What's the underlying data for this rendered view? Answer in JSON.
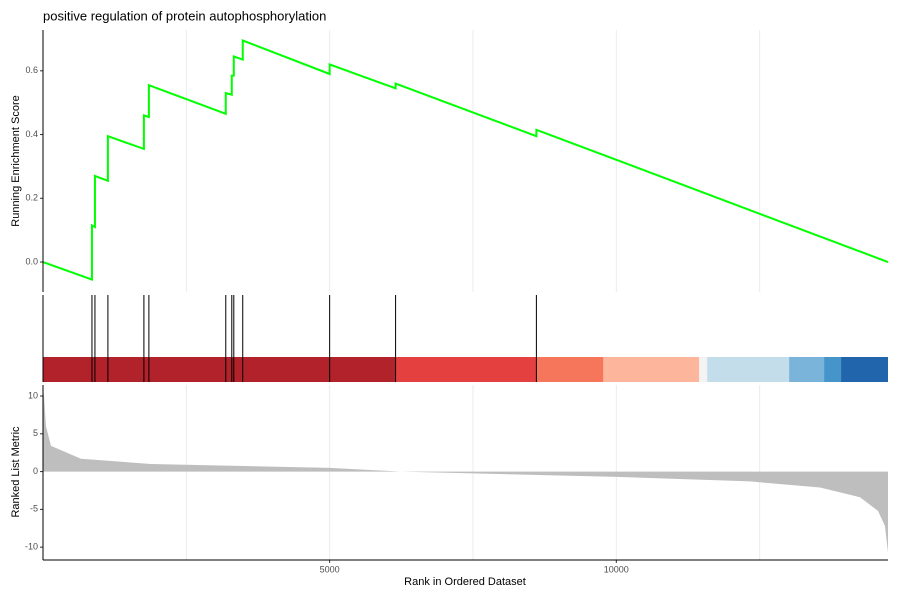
{
  "chart_data": [
    {
      "type": "line",
      "title": "positive regulation of protein autophosphorylation",
      "ylabel": "Running Enrichment Score",
      "color": "#00FF00",
      "x": [
        0,
        854,
        854,
        906,
        906,
        1132,
        1132,
        1760,
        1760,
        1847,
        1847,
        3188,
        3188,
        3293,
        3293,
        3328,
        3328,
        3484,
        3484,
        5000,
        5000,
        6150,
        6150,
        8606,
        8606,
        14739
      ],
      "y": [
        0,
        -0.055,
        0.115,
        0.11,
        0.27,
        0.255,
        0.395,
        0.355,
        0.46,
        0.455,
        0.555,
        0.465,
        0.53,
        0.525,
        0.585,
        0.585,
        0.645,
        0.635,
        0.695,
        0.59,
        0.62,
        0.545,
        0.56,
        0.395,
        0.415,
        0
      ],
      "xlim": [
        0,
        14739
      ],
      "ylim": [
        -0.094,
        0.728
      ],
      "yticks": [
        {
          "value": 0,
          "label": "0.0"
        },
        0.2,
        0.4,
        0.6
      ],
      "xgrid": [
        2500,
        5000,
        7500,
        10000,
        12500
      ]
    },
    {
      "type": "rug",
      "color": "#000000",
      "x": [
        854,
        906,
        1132,
        1760,
        1847,
        3188,
        3293,
        3328,
        3484,
        5000,
        6150,
        8606
      ],
      "xlim": [
        0,
        14739
      ],
      "band_bins": [
        0,
        6150,
        8606,
        9774,
        11446,
        11585,
        13014,
        13624,
        13920,
        14739
      ],
      "band_colors": [
        "#B2222A",
        "#E4403F",
        "#F6765C",
        "#FDB59B",
        "#F3F3F3",
        "#C4DDEB",
        "#7AB4DA",
        "#4594CA",
        "#2166AC"
      ]
    },
    {
      "type": "area",
      "xlabel": "Rank in Ordered Dataset",
      "ylabel": "Ranked List Metric",
      "color": "#BEBEBE",
      "x": [
        0,
        17,
        52,
        139,
        662,
        1882,
        5000,
        6237,
        10000,
        12334,
        13554,
        14251,
        14564,
        14686,
        14739
      ],
      "values": [
        11,
        10,
        6,
        3.4,
        1.7,
        1,
        0.5,
        0,
        -0.7,
        -1.3,
        -2.1,
        -3.4,
        -5.2,
        -7.2,
        -10.7
      ],
      "xlim": [
        0,
        14739
      ],
      "ylim": [
        -11.7,
        11.46
      ],
      "yticks": [
        10,
        5,
        0,
        -5,
        -10
      ],
      "xticks": [
        5000,
        10000
      ],
      "xgrid": [
        2500,
        5000,
        7500,
        10000,
        12500
      ]
    }
  ]
}
